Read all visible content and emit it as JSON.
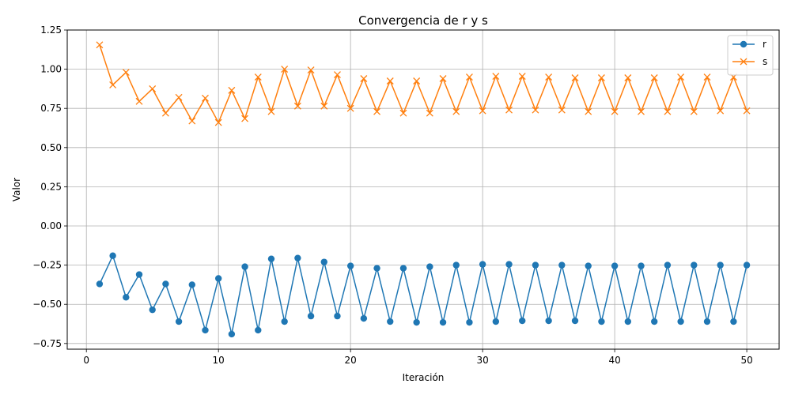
{
  "chart_data": {
    "type": "line",
    "title": "Convergencia de r y s",
    "xlabel": "Iteración",
    "ylabel": "Valor",
    "xlim": [
      -1.45,
      52.45
    ],
    "ylim": [
      -0.7862,
      1.25
    ],
    "xticks": [
      0,
      10,
      20,
      30,
      40,
      50
    ],
    "xtick_labels": [
      "0",
      "10",
      "20",
      "30",
      "40",
      "50"
    ],
    "yticks": [
      -0.75,
      -0.5,
      -0.25,
      0.0,
      0.25,
      0.5,
      0.75,
      1.0,
      1.25
    ],
    "ytick_labels": [
      "−0.75",
      "−0.50",
      "−0.25",
      "0.00",
      "0.25",
      "0.50",
      "0.75",
      "1.00",
      "1.25"
    ],
    "grid": true,
    "legend_position": "top-right",
    "x": [
      1,
      2,
      3,
      4,
      5,
      6,
      7,
      8,
      9,
      10,
      11,
      12,
      13,
      14,
      15,
      16,
      17,
      18,
      19,
      20,
      21,
      22,
      23,
      24,
      25,
      26,
      27,
      28,
      29,
      30,
      31,
      32,
      33,
      34,
      35,
      36,
      37,
      38,
      39,
      40,
      41,
      42,
      43,
      44,
      45,
      46,
      47,
      48,
      49,
      50
    ],
    "series": [
      {
        "name": "r",
        "color": "#1f77b4",
        "marker": "circle",
        "values": [
          -0.37,
          -0.19,
          -0.455,
          -0.31,
          -0.535,
          -0.37,
          -0.61,
          -0.375,
          -0.665,
          -0.335,
          -0.69,
          -0.26,
          -0.665,
          -0.21,
          -0.61,
          -0.205,
          -0.575,
          -0.23,
          -0.575,
          -0.255,
          -0.59,
          -0.27,
          -0.61,
          -0.27,
          -0.615,
          -0.26,
          -0.615,
          -0.25,
          -0.615,
          -0.245,
          -0.61,
          -0.245,
          -0.605,
          -0.25,
          -0.605,
          -0.25,
          -0.605,
          -0.255,
          -0.61,
          -0.255,
          -0.61,
          -0.255,
          -0.61,
          -0.25,
          -0.61,
          -0.25,
          -0.61,
          -0.25,
          -0.61,
          -0.25
        ]
      },
      {
        "name": "s",
        "color": "#ff7f0e",
        "marker": "x",
        "values": [
          1.155,
          0.9,
          0.98,
          0.795,
          0.875,
          0.72,
          0.82,
          0.67,
          0.815,
          0.66,
          0.865,
          0.685,
          0.95,
          0.73,
          1.0,
          0.765,
          0.995,
          0.765,
          0.965,
          0.75,
          0.94,
          0.73,
          0.925,
          0.72,
          0.925,
          0.72,
          0.94,
          0.73,
          0.95,
          0.735,
          0.955,
          0.74,
          0.955,
          0.74,
          0.95,
          0.74,
          0.945,
          0.73,
          0.945,
          0.73,
          0.945,
          0.73,
          0.945,
          0.73,
          0.95,
          0.73,
          0.95,
          0.735,
          0.95,
          0.735
        ]
      }
    ]
  }
}
